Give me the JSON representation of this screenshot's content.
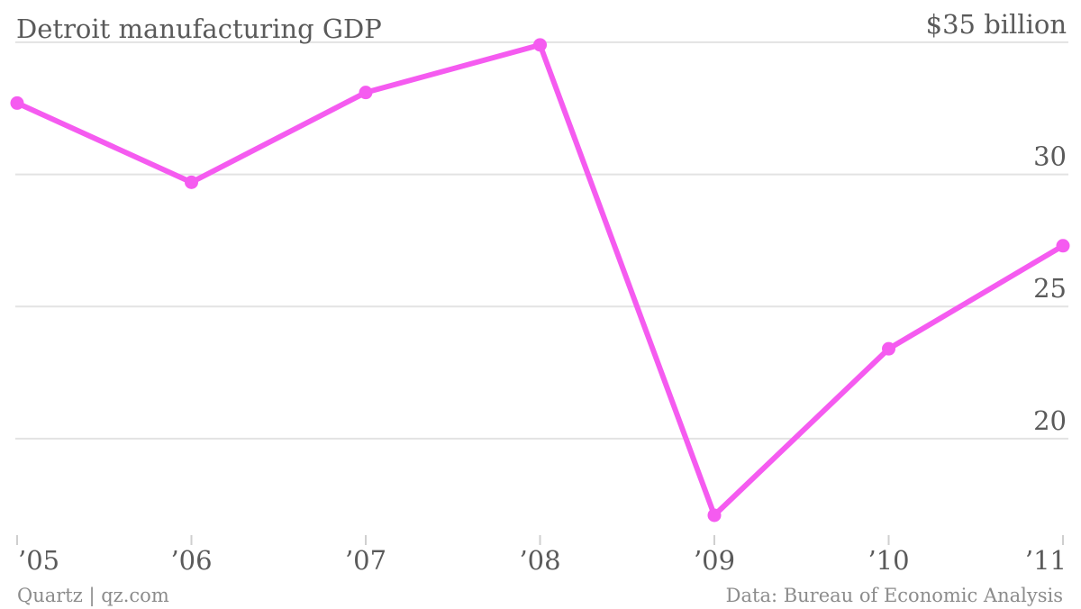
{
  "chart_data": {
    "type": "line",
    "title": "Detroit manufacturing GDP",
    "y_top_label": "$35 billion",
    "categories": [
      "’05",
      "’06",
      "’07",
      "’08",
      "’09",
      "’10",
      "’11"
    ],
    "series": [
      {
        "color": "#f55bf0",
        "values": [
          32.7,
          29.7,
          33.1,
          34.9,
          17.1,
          23.4,
          27.3
        ]
      }
    ],
    "yticks": [
      20,
      25,
      30,
      35
    ],
    "ytick_labels": [
      "20",
      "25",
      "30",
      "$35 billion"
    ],
    "ylim": [
      15.7,
      36.6
    ],
    "grid": true
  },
  "footer": {
    "source_left": "Quartz | qz.com",
    "source_right": "Data: Bureau of Economic Analysis"
  }
}
